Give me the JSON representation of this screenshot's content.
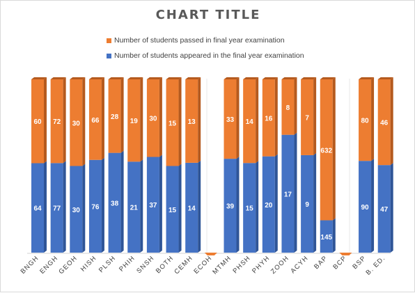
{
  "colors": {
    "passed": "#ed7d31",
    "passed_side": "#b55a1e",
    "appeared": "#4472c4",
    "appeared_side": "#2f5597",
    "label": "#ffffff",
    "axis": "#404040"
  },
  "chart_data": {
    "type": "bar",
    "stacked": true,
    "percent_stacked": true,
    "three_d": true,
    "title": "CHART TITLE",
    "legend_position": "top",
    "categories": [
      "BNGH",
      "ENGH",
      "GEOH",
      "HISH",
      "PLSH",
      "PHIH",
      "SNSH",
      "BOTH",
      "CEMH",
      "ECOH",
      "MTMH",
      "PHSH",
      "PHYH",
      "ZOOH",
      "ACYH",
      "BAP",
      "BCP",
      "BSP",
      "B. ED."
    ],
    "series": [
      {
        "name": "Number of students passed in final year examination",
        "color": "#ed7d31",
        "values": [
          60,
          72,
          30,
          66,
          28,
          19,
          30,
          15,
          13,
          null,
          33,
          14,
          16,
          8,
          7,
          632,
          null,
          80,
          46
        ],
        "labels": [
          "60",
          "72",
          "30",
          "66",
          "28",
          "19",
          "30",
          "15",
          "13",
          "",
          "33",
          "14",
          "16",
          "8",
          "7",
          "632",
          "",
          "80",
          "46"
        ]
      },
      {
        "name": "Number of students appeared in the final year examination",
        "color": "#4472c4",
        "values": [
          64,
          77,
          30,
          76,
          38,
          21,
          37,
          15,
          14,
          null,
          39,
          15,
          20,
          17,
          9,
          145,
          null,
          90,
          47
        ],
        "labels": [
          "64",
          "77",
          "30",
          "76",
          "38",
          "21",
          "37",
          "15",
          "14",
          "",
          "39",
          "15",
          "20",
          "17",
          "9",
          "145",
          "",
          "90",
          "47"
        ]
      }
    ]
  }
}
